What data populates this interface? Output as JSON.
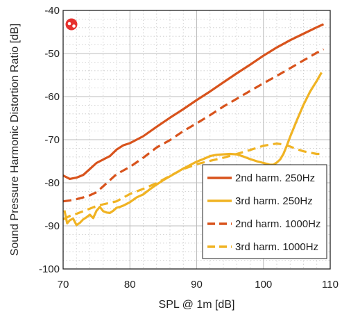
{
  "chart_data": {
    "type": "line",
    "title": "",
    "xlabel": "SPL @ 1m [dB]",
    "ylabel": "Sound Pressure Harmonic Distortion Ratio [dB]",
    "xlim": [
      70,
      110
    ],
    "ylim": [
      -100,
      -40
    ],
    "x_ticks": [
      "70",
      "80",
      "90",
      "100",
      "110"
    ],
    "y_ticks": [
      "-40",
      "-50",
      "-60",
      "-70",
      "-80",
      "-90",
      "-100"
    ],
    "grid": true,
    "legend_position": "bottom-right",
    "logo": "red-circle-logo",
    "series": [
      {
        "name": "2nd harm. 250Hz",
        "color": "#d8531c",
        "dash": "solid",
        "x": [
          70,
          71,
          72,
          73,
          74,
          75,
          76,
          77,
          78,
          79,
          80,
          82,
          84,
          86,
          88,
          90,
          92,
          94,
          96,
          98,
          100,
          102,
          104,
          106,
          108,
          109
        ],
        "y": [
          -78.3,
          -79.1,
          -78.8,
          -78.2,
          -76.8,
          -75.4,
          -74.6,
          -73.8,
          -72.3,
          -71.3,
          -70.8,
          -69.2,
          -67.0,
          -64.9,
          -62.9,
          -60.8,
          -58.8,
          -56.7,
          -54.6,
          -52.6,
          -50.5,
          -48.6,
          -46.9,
          -45.4,
          -43.9,
          -43.2
        ]
      },
      {
        "name": "3rd harm. 250Hz",
        "color": "#f0b323",
        "dash": "solid",
        "x": [
          70.2,
          70.6,
          71.0,
          71.5,
          72.0,
          72.5,
          73.0,
          73.5,
          74.0,
          74.5,
          75.0,
          75.5,
          76.0,
          76.5,
          77.0,
          77.5,
          78.0,
          78.5,
          79.0,
          80.0,
          81.0,
          82.0,
          83.0,
          84.0,
          85.0,
          86.0,
          87.0,
          88.0,
          89.0,
          90.0,
          91.0,
          92.0,
          93.0,
          94.0,
          95.0,
          96.0,
          97.0,
          98.0,
          99.0,
          100.0,
          101.0,
          101.5,
          102.0,
          102.5,
          103.0,
          103.5,
          104.0,
          105.0,
          106.0,
          107.0,
          108.0,
          108.7
        ],
        "y": [
          -86.4,
          -89.4,
          -88.7,
          -88.3,
          -89.8,
          -89.3,
          -88.5,
          -88.0,
          -87.4,
          -88.2,
          -86.5,
          -85.6,
          -86.6,
          -86.9,
          -87.0,
          -86.5,
          -85.8,
          -85.6,
          -85.3,
          -84.5,
          -83.4,
          -82.7,
          -81.5,
          -80.4,
          -79.4,
          -78.5,
          -77.6,
          -76.7,
          -75.9,
          -75.1,
          -74.5,
          -73.8,
          -73.5,
          -73.4,
          -73.3,
          -73.4,
          -73.9,
          -74.5,
          -75.0,
          -75.4,
          -75.8,
          -75.8,
          -75.3,
          -74.6,
          -73.3,
          -71.4,
          -69.3,
          -65.5,
          -61.9,
          -58.8,
          -56.3,
          -54.4
        ]
      },
      {
        "name": "2nd harm. 1000Hz",
        "color": "#d8531c",
        "dash": "dashed",
        "x": [
          70,
          71,
          72,
          73,
          74,
          75,
          76,
          78,
          80,
          82,
          84,
          86,
          88,
          90,
          92,
          94,
          96,
          98,
          100,
          102,
          104,
          106,
          108,
          109
        ],
        "y": [
          -84.3,
          -84.1,
          -83.8,
          -83.4,
          -82.9,
          -82.2,
          -80.8,
          -78.0,
          -76.3,
          -74.2,
          -71.8,
          -70.1,
          -68.0,
          -66.2,
          -64.3,
          -62.3,
          -60.5,
          -58.7,
          -56.9,
          -55.2,
          -53.4,
          -51.6,
          -49.8,
          -49.0
        ]
      },
      {
        "name": "3rd harm. 1000Hz",
        "color": "#f0b323",
        "dash": "dashed",
        "x": [
          70,
          71,
          72,
          73,
          74,
          75,
          76,
          78,
          80,
          82,
          84,
          86,
          88,
          90,
          92,
          94,
          96,
          98,
          100,
          102,
          103,
          104,
          105,
          106,
          107,
          108,
          109
        ],
        "y": [
          -88.5,
          -87.7,
          -87.2,
          -86.6,
          -86.0,
          -85.4,
          -85.0,
          -84.3,
          -82.6,
          -81.4,
          -80.1,
          -78.4,
          -76.8,
          -75.7,
          -74.9,
          -74.2,
          -73.3,
          -72.4,
          -71.4,
          -70.9,
          -71.1,
          -71.6,
          -72.2,
          -72.7,
          -73.0,
          -73.3,
          -73.3
        ]
      }
    ]
  }
}
